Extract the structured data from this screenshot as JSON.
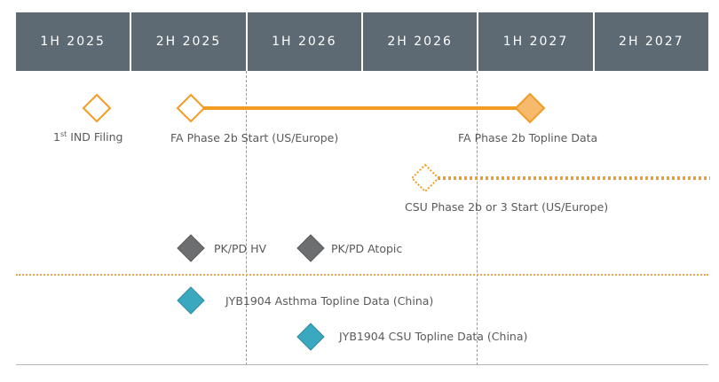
{
  "periods": [
    "1H 2025",
    "2H 2025",
    "1H 2026",
    "2H 2026",
    "1H 2027",
    "2H 2027"
  ],
  "milestones": {
    "ind_filing": {
      "prefix": "1",
      "sup": "st",
      "label": " IND Filing"
    },
    "fa_phase2b_start": {
      "label": "FA Phase 2b Start (US/Europe)"
    },
    "fa_phase2b_topline": {
      "label": "FA Phase 2b Topline Data"
    },
    "csu_phase_start": {
      "label": "CSU Phase 2b or 3 Start (US/Europe)"
    },
    "pkpd_hv": {
      "label": "PK/PD HV"
    },
    "pkpd_atopic": {
      "label": "PK/PD Atopic"
    },
    "jyb_asthma": {
      "label": "JYB1904 Asthma Topline Data (China)"
    },
    "jyb_csu": {
      "label": "JYB1904 CSU Topline Data (China)"
    }
  },
  "colors": {
    "header_bg": "#5e6a73",
    "orange": "#f39c24",
    "orange_fill": "#f7b96b",
    "gray": "#6d6e70",
    "teal": "#3aa8bf"
  }
}
